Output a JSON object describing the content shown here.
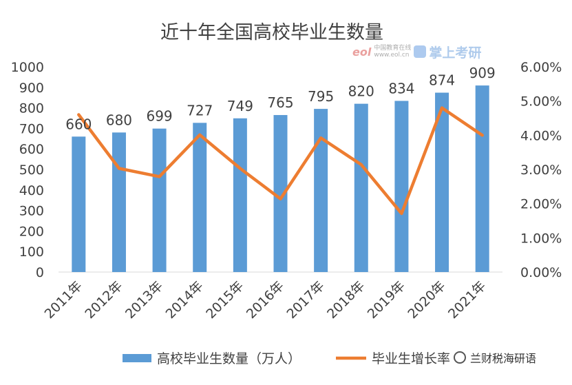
{
  "chart_data": {
    "type": "bar",
    "title": "近十年全国高校毕业生数量",
    "categories": [
      "2011年",
      "2012年",
      "2013年",
      "2014年",
      "2015年",
      "2016年",
      "2017年",
      "2018年",
      "2019年",
      "2020年",
      "2021年"
    ],
    "series": [
      {
        "name": "高校毕业生数量（万人）",
        "type": "bar",
        "axis": "left",
        "color": "#5b9bd5",
        "values": [
          660,
          680,
          699,
          727,
          749,
          765,
          795,
          820,
          834,
          874,
          909
        ]
      },
      {
        "name": "毕业生增长率",
        "type": "line",
        "axis": "right",
        "color": "#ed7d31",
        "values": [
          4.6,
          3.03,
          2.79,
          4.01,
          3.03,
          2.14,
          3.92,
          3.14,
          1.71,
          4.8,
          4.0
        ]
      }
    ],
    "y_left": {
      "min": 0,
      "max": 1000,
      "step": 100,
      "ticks": [
        "0",
        "100",
        "200",
        "300",
        "400",
        "500",
        "600",
        "700",
        "800",
        "900",
        "1000"
      ]
    },
    "y_right": {
      "min": 0,
      "max": 6,
      "step": 1,
      "ticks": [
        "0.00%",
        "1.00%",
        "2.00%",
        "3.00%",
        "4.00%",
        "5.00%",
        "6.00%"
      ]
    },
    "grid": false,
    "legend_position": "bottom",
    "data_labels": [
      "660",
      "680",
      "699",
      "727",
      "749",
      "765",
      "795",
      "820",
      "834",
      "874",
      "909"
    ]
  },
  "logo": {
    "small_text_1": "中国教育在线",
    "small_text_2": "www.eol.cn",
    "brand_text": "掌上考研",
    "eol_text": "eol"
  },
  "watermark": {
    "text": "兰财税海研语"
  }
}
